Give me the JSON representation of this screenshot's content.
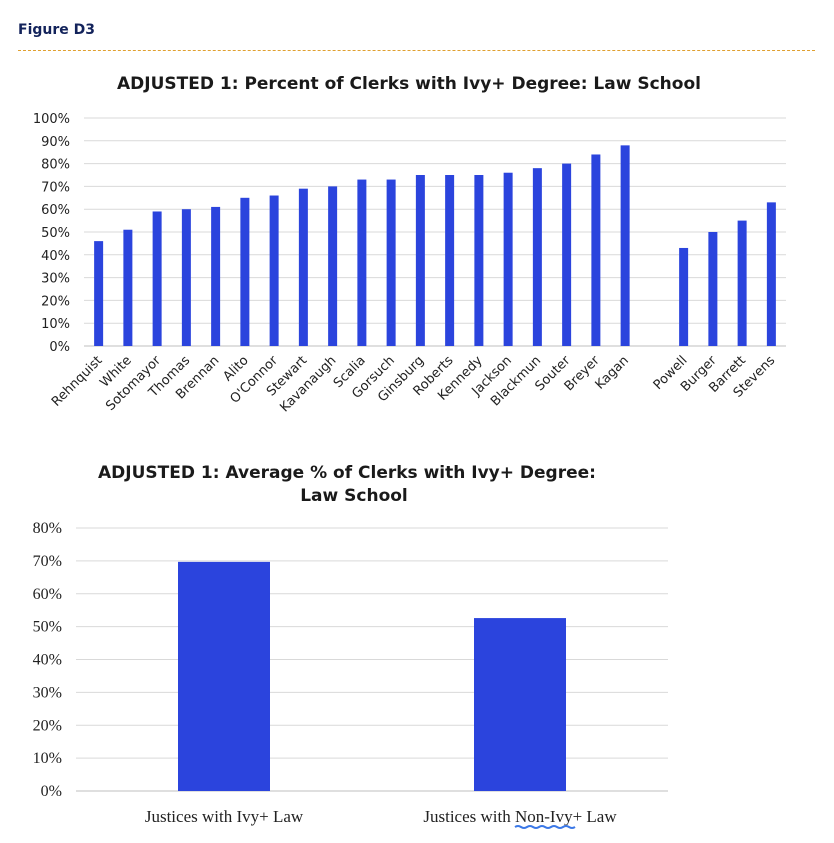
{
  "figure_label": "Figure D3",
  "colors": {
    "bar": "#2b44dd",
    "rule": "#e0a030",
    "squiggle": "#3b78e7"
  },
  "chart_data": [
    {
      "type": "bar",
      "title": "ADJUSTED 1: Percent of Clerks with Ivy+ Degree: Law School",
      "xlabel": "",
      "ylabel": "",
      "ylim": [
        0,
        100
      ],
      "yticks": [
        "0%",
        "10%",
        "20%",
        "30%",
        "40%",
        "50%",
        "60%",
        "70%",
        "80%",
        "90%",
        "100%"
      ],
      "categories": [
        "Rehnquist",
        "White",
        "Sotomayor",
        "Thomas",
        "Brennan",
        "Alito",
        "O'Connor",
        "Stewart",
        "Kavanaugh",
        "Scalia",
        "Gorsuch",
        "Ginsburg",
        "Roberts",
        "Kennedy",
        "Jackson",
        "Blackmun",
        "Souter",
        "Breyer",
        "Kagan",
        "",
        "Powell",
        "Burger",
        "Barrett",
        "Stevens"
      ],
      "values": [
        46,
        51,
        59,
        60,
        61,
        65,
        66,
        69,
        70,
        73,
        73,
        75,
        75,
        75,
        76,
        78,
        80,
        84,
        88,
        null,
        43,
        50,
        55,
        63
      ],
      "grid": true,
      "legend": "none"
    },
    {
      "type": "bar",
      "title": "ADJUSTED 1: Average % of Clerks with Ivy+ Degree:",
      "title_line2": "Law School",
      "xlabel": "",
      "ylabel": "",
      "ylim": [
        0,
        80
      ],
      "yticks": [
        "0%",
        "10%",
        "20%",
        "30%",
        "40%",
        "50%",
        "60%",
        "70%",
        "80%"
      ],
      "categories": [
        "Justices with Ivy+ Law",
        "Justices with Non-Ivy+ Law"
      ],
      "values": [
        69.7,
        52.6
      ],
      "grid": true,
      "legend": "none"
    }
  ]
}
